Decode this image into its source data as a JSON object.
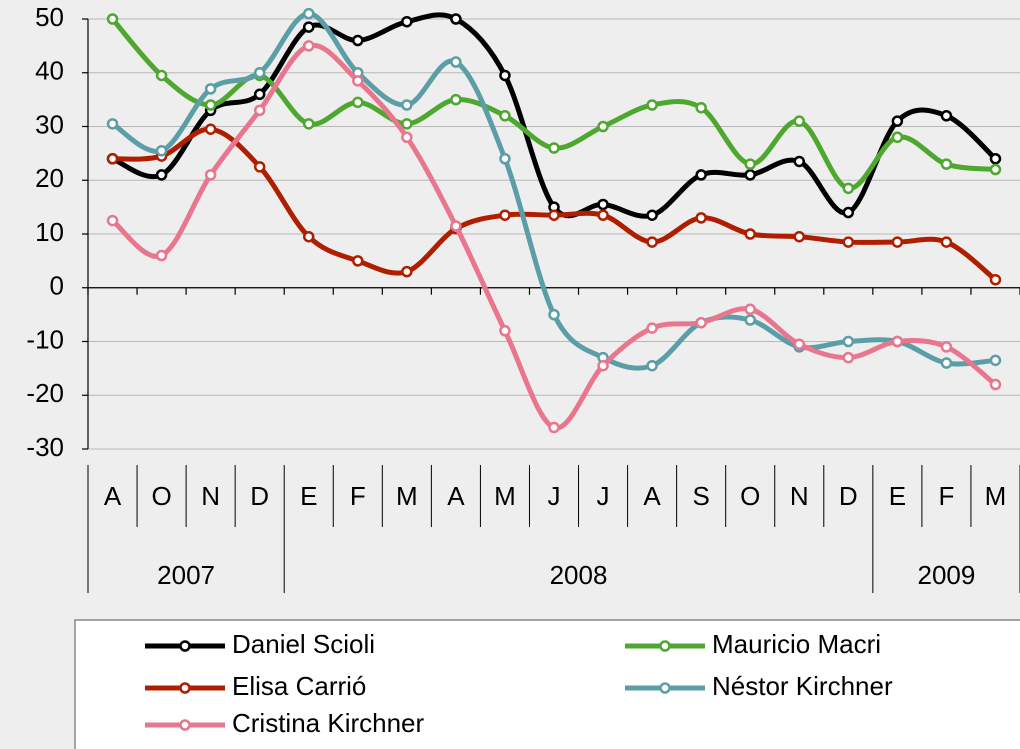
{
  "chart_data": {
    "type": "line",
    "categories": [
      "A",
      "O",
      "N",
      "D",
      "E",
      "F",
      "M",
      "A",
      "M",
      "J",
      "J",
      "A",
      "S",
      "O",
      "N",
      "D",
      "E",
      "F",
      "M"
    ],
    "years": [
      "2007",
      "2008",
      "2009"
    ],
    "ylim": [
      -30,
      50
    ],
    "yticks": [
      -30,
      -20,
      -10,
      0,
      10,
      20,
      30,
      40,
      50
    ],
    "grid": true,
    "series": [
      {
        "name": "Daniel Scioli",
        "color": "#000000",
        "values": [
          24,
          21,
          33,
          36,
          48.5,
          46,
          49.5,
          50,
          39.5,
          15,
          15.5,
          13.5,
          21,
          21,
          23.5,
          14,
          31,
          32,
          24
        ]
      },
      {
        "name": "Mauricio Macri",
        "color": "#4ea72e",
        "values": [
          50,
          39.5,
          34,
          39.5,
          30.5,
          34.5,
          30.5,
          35,
          32,
          26,
          30,
          34,
          33.5,
          23,
          31,
          18.5,
          28,
          23,
          22
        ]
      },
      {
        "name": "Elisa Carrió",
        "color": "#b01e00",
        "values": [
          24,
          24.5,
          29.5,
          22.5,
          9.5,
          5,
          3,
          11,
          13.5,
          13.5,
          13.5,
          8.5,
          13,
          10,
          9.5,
          8.5,
          8.5,
          8.5,
          1.5
        ]
      },
      {
        "name": "Néstor Kirchner",
        "color": "#5c9ea8",
        "values": [
          30.5,
          25.5,
          37,
          40,
          51,
          40,
          34,
          42,
          24,
          -5,
          -13,
          -14.5,
          -6.5,
          -6,
          -11,
          -10,
          -10,
          -14,
          -13.5
        ]
      },
      {
        "name": "Cristina Kirchner",
        "color": "#e8768f",
        "values": [
          12.5,
          6,
          21,
          33,
          45,
          38.5,
          28,
          11.5,
          -8,
          -26,
          -14.5,
          -7.5,
          -6.5,
          -4,
          -10.5,
          -13,
          -10,
          -11,
          -18
        ]
      }
    ],
    "legend": "bottom"
  }
}
